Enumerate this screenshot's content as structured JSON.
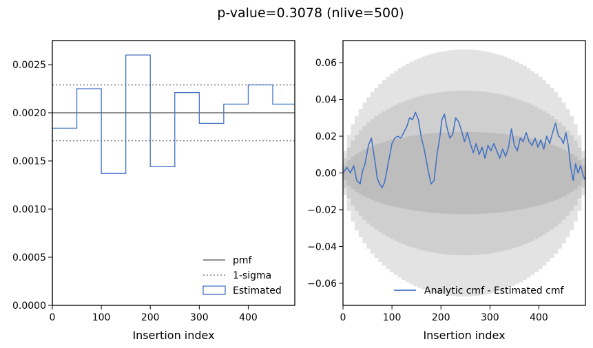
{
  "figure": {
    "suptitle": "p-value=0.3078 (nlive=500)"
  },
  "colors": {
    "pmf": "#808080",
    "sigma": "#808080",
    "estimated": "#4472c4",
    "band_outer": "#e3e3e3",
    "band_mid": "#cfcfcf",
    "band_inner": "#bdbdbd"
  },
  "chart_data": [
    {
      "type": "step",
      "xlabel": "Insertion index",
      "ylabel": "",
      "xlim": [
        0,
        495
      ],
      "ylim": [
        0,
        0.00275
      ],
      "xticks": [
        0,
        100,
        200,
        300,
        400
      ],
      "xtick_labels": [
        "0",
        "100",
        "200",
        "300",
        "400"
      ],
      "yticks": [
        0,
        0.0005,
        0.001,
        0.0015,
        0.002,
        0.0025
      ],
      "ytick_labels": [
        "0.0000",
        "0.0005",
        "0.0010",
        "0.0015",
        "0.0020",
        "0.0025"
      ],
      "bin_edges": [
        0,
        50,
        100,
        150,
        200,
        250,
        300,
        350,
        400,
        450,
        500
      ],
      "series": [
        {
          "name": "pmf",
          "style": "solid",
          "values": [
            0.002
          ]
        },
        {
          "name": "1-sigma",
          "style": "dotted",
          "values": [
            0.00229,
            0.00171
          ]
        },
        {
          "name": "Estimated",
          "style": "step",
          "values": [
            0.00184,
            0.00225,
            0.00137,
            0.0026,
            0.00144,
            0.00221,
            0.00189,
            0.00209,
            0.00229,
            0.00209
          ]
        }
      ],
      "legend": [
        "pmf",
        "1-sigma",
        "Estimated"
      ],
      "legend_loc": "lower-right"
    },
    {
      "type": "line",
      "xlabel": "Insertion index",
      "ylabel": "",
      "xlim": [
        0,
        495
      ],
      "ylim": [
        -0.072,
        0.072
      ],
      "xticks": [
        0,
        100,
        200,
        300,
        400
      ],
      "xtick_labels": [
        "0",
        "100",
        "200",
        "300",
        "400"
      ],
      "yticks": [
        -0.06,
        -0.04,
        -0.02,
        0.0,
        0.02,
        0.04,
        0.06
      ],
      "ytick_labels": [
        "−0.06",
        "−0.04",
        "−0.02",
        "0.00",
        "0.02",
        "0.04",
        "0.06"
      ],
      "bands": {
        "sigma_levels": [
          1,
          2,
          3
        ],
        "max_amplitude": [
          0.0224,
          0.0448,
          0.0672
        ]
      },
      "series": [
        {
          "name": "Analytic cmf - Estimated cmf",
          "x": [
            0,
            8,
            15,
            22,
            28,
            35,
            40,
            45,
            52,
            58,
            62,
            66,
            70,
            75,
            80,
            85,
            90,
            95,
            100,
            106,
            112,
            118,
            124,
            130,
            136,
            142,
            148,
            154,
            160,
            165,
            170,
            175,
            180,
            186,
            192,
            198,
            202,
            207,
            212,
            218,
            224,
            230,
            236,
            242,
            248,
            254,
            260,
            266,
            272,
            278,
            284,
            290,
            296,
            302,
            308,
            314,
            320,
            326,
            332,
            338,
            344,
            350,
            356,
            362,
            368,
            374,
            380,
            386,
            392,
            398,
            404,
            410,
            416,
            422,
            428,
            434,
            440,
            445,
            450,
            455,
            460,
            465,
            470,
            475,
            480,
            485,
            490,
            495
          ],
          "values": [
            0.0,
            0.003,
            0.0,
            0.004,
            -0.004,
            -0.006,
            0.001,
            0.005,
            0.015,
            0.019,
            0.012,
            0.005,
            -0.003,
            -0.006,
            -0.008,
            -0.005,
            0.002,
            0.009,
            0.016,
            0.019,
            0.02,
            0.019,
            0.022,
            0.025,
            0.03,
            0.029,
            0.033,
            0.029,
            0.019,
            0.014,
            0.007,
            0.0,
            -0.006,
            -0.004,
            0.01,
            0.02,
            0.029,
            0.032,
            0.025,
            0.019,
            0.021,
            0.03,
            0.028,
            0.023,
            0.017,
            0.022,
            0.016,
            0.011,
            0.016,
            0.01,
            0.014,
            0.008,
            0.015,
            0.012,
            0.016,
            0.012,
            0.008,
            0.013,
            0.009,
            0.014,
            0.024,
            0.015,
            0.012,
            0.019,
            0.017,
            0.022,
            0.017,
            0.015,
            0.019,
            0.014,
            0.018,
            0.013,
            0.02,
            0.016,
            0.022,
            0.027,
            0.02,
            0.019,
            0.016,
            0.022,
            0.015,
            0.003,
            -0.004,
            0.005,
            0.0,
            0.004,
            -0.001,
            -0.004
          ]
        }
      ],
      "legend": [
        "Analytic cmf - Estimated cmf"
      ],
      "legend_loc": "lower-right"
    }
  ]
}
